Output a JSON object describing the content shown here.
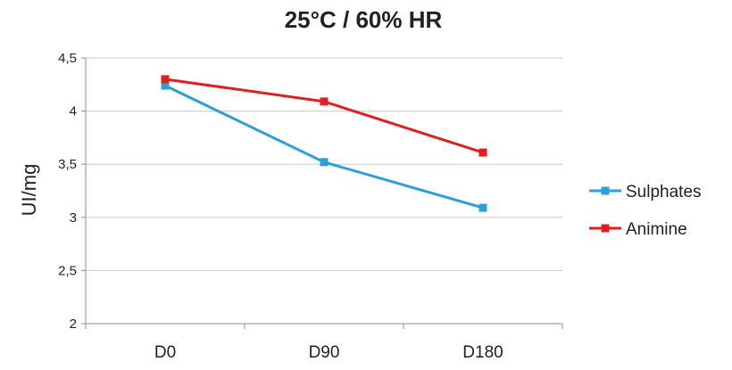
{
  "chart_data": {
    "type": "line",
    "title": "25°C / 60% HR",
    "xlabel": "",
    "ylabel": "UI/mg",
    "categories": [
      "D0",
      "D90",
      "D180"
    ],
    "ylim": [
      2,
      4.5
    ],
    "yticks": [
      2,
      2.5,
      3,
      3.5,
      4,
      4.5
    ],
    "ytick_labels": [
      "2",
      "2,5",
      "3",
      "3,5",
      "4",
      "4,5"
    ],
    "grid": true,
    "legend_position": "right",
    "series": [
      {
        "name": "Sulphates",
        "color": "#2a9fd8",
        "values": [
          4.24,
          3.52,
          3.09
        ]
      },
      {
        "name": "Animine",
        "color": "#e02020",
        "values": [
          4.3,
          4.09,
          3.61
        ]
      }
    ]
  }
}
